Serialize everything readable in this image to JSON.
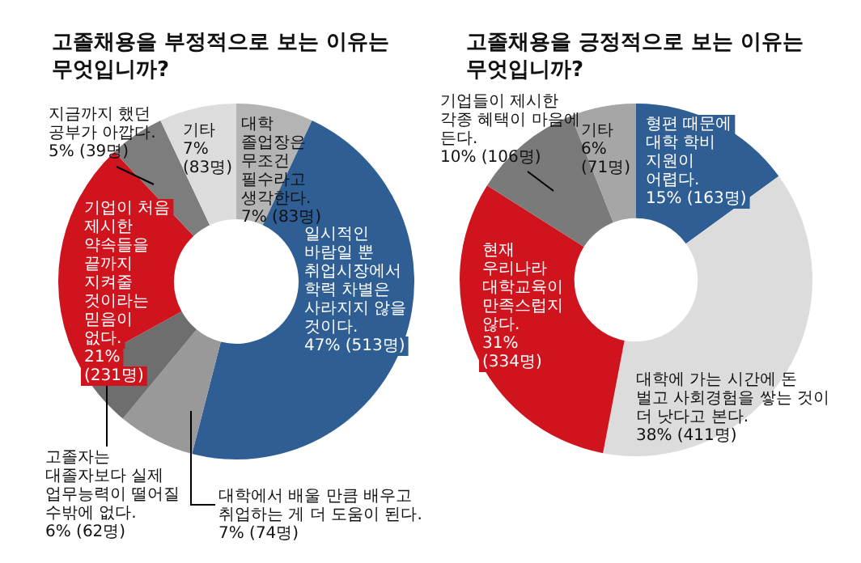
{
  "chart_data": [
    {
      "type": "donut",
      "title": "고졸채용을 부정적으로 보는 이유는 무엇입니까?",
      "categories": [
        "대학 졸업장은 무조건 필수라고 생각한다.",
        "일시적인 바람일 뿐 취업시장에서 학력 차별은 사라지지 않을 것이다.",
        "대학에서 배울 만큼 배우고 취업하는 게 더 도움이 된다.",
        "고졸자는 대졸자보다 실제 업무능력이 떨어질 수밖에 없다.",
        "기업이 처음 제시한 약속들을 끝까지 지켜줄 것이라는 믿음이 없다.",
        "지금까지 했던 공부가 아깝다.",
        "기타"
      ],
      "values": [
        7,
        47,
        7,
        6,
        21,
        5,
        7
      ],
      "colors": [
        "#b4b4b4",
        "#2e5e93",
        "#999999",
        "#6e6e6e",
        "#d0141e",
        "#7d7d7d",
        "#dcdcdc"
      ],
      "value_labels": [
        "7% (83명)",
        "47% (513명)",
        "7% (74명)",
        "6% (62명)",
        "21% (231명)",
        "5% (39명)",
        "7% (83명)"
      ]
    },
    {
      "type": "donut",
      "title": "고졸채용을 긍정적으로 보는 이유는 무엇입니까?",
      "categories": [
        "형편 때문에 대학 학비 지원이 어렵다.",
        "대학에 가는 시간에 돈 벌고 사회경험을 쌓는 것이 더 낫다고 본다.",
        "현재 우리나라 대학교육이 만족스럽지 않다.",
        "기업들이 제시한 각종 혜택이 마음에 든다.",
        "기타"
      ],
      "values": [
        15,
        38,
        31,
        10,
        6
      ],
      "colors": [
        "#2e5e93",
        "#dcdcdc",
        "#d0141e",
        "#7a7a7a",
        "#a6a6a6"
      ],
      "value_labels": [
        "15% (163명)",
        "38% (411명)",
        "31% (334명)",
        "10% (106명)",
        "6% (71명)"
      ]
    }
  ]
}
